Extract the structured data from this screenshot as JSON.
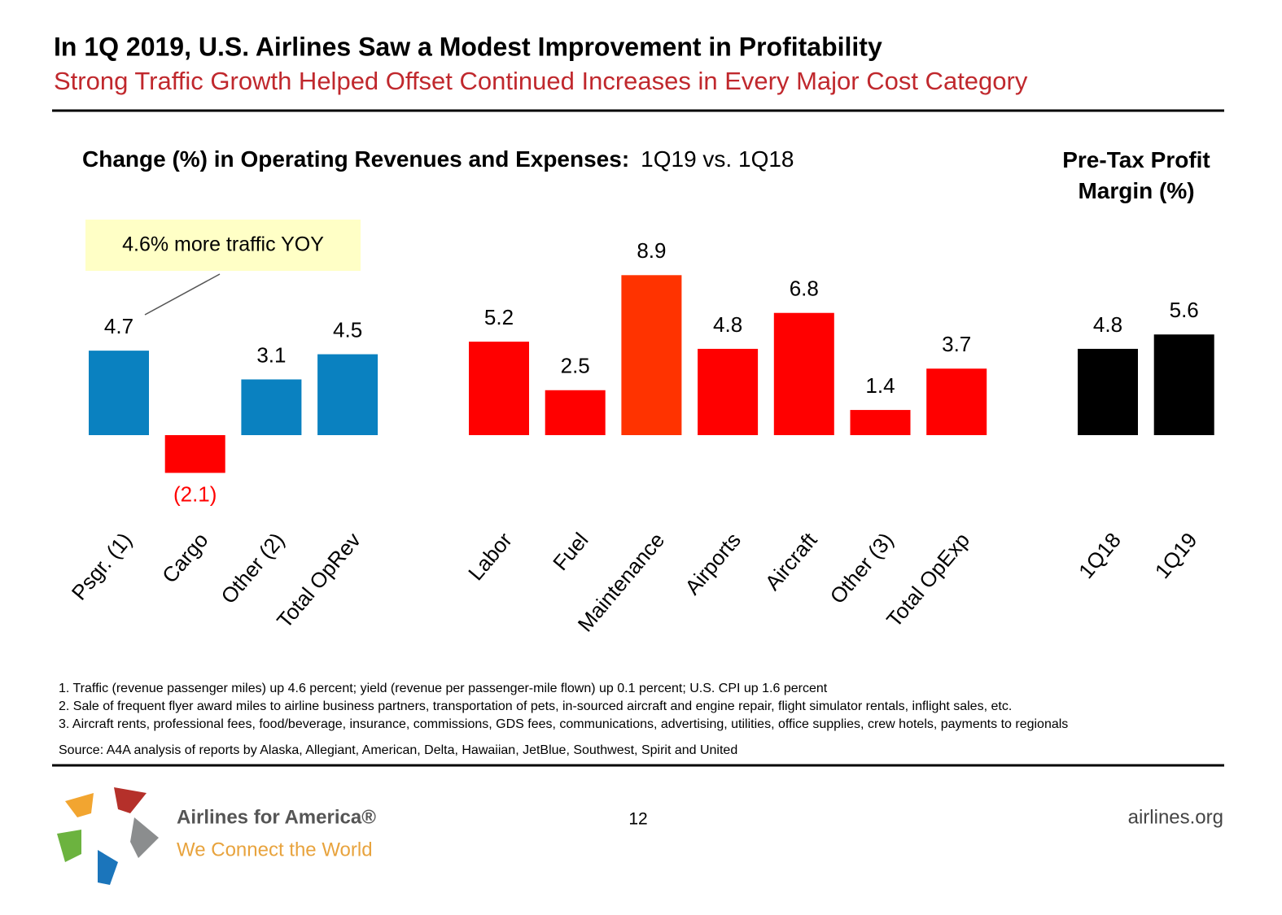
{
  "title": "In 1Q 2019, U.S. Airlines Saw a Modest Improvement in Profitability",
  "subtitle": "Strong Traffic Growth Helped Offset Continued Increases in Every Major Cost Category",
  "chart_data": [
    {
      "type": "bar",
      "title": "Change (%) in Operating Revenues and Expenses:",
      "subtitle": "1Q19 vs. 1Q18",
      "categories": [
        "Psgr. (1)",
        "Cargo",
        "Other (2)",
        "Total OpRev"
      ],
      "values": [
        4.7,
        -2.1,
        3.1,
        4.5
      ],
      "value_labels": [
        "4.7",
        "(2.1)",
        "3.1",
        "4.5"
      ],
      "colors": [
        "#0a81c0",
        "#ff0000",
        "#0a81c0",
        "#0a81c0"
      ],
      "annotation": "4.6% more traffic YOY"
    },
    {
      "type": "bar",
      "categories": [
        "Labor",
        "Fuel",
        "Maintenance",
        "Airports",
        "Aircraft",
        "Other (3)",
        "Total OpExp"
      ],
      "values": [
        5.2,
        2.5,
        8.9,
        4.8,
        6.8,
        1.4,
        3.7
      ],
      "colors": [
        "#ff0000",
        "#ff0000",
        "#ff3300",
        "#ff0000",
        "#ff0000",
        "#ff0000",
        "#ff0000"
      ]
    },
    {
      "type": "bar",
      "title": "Pre-Tax Profit Margin (%)",
      "categories": [
        "1Q18",
        "1Q19"
      ],
      "values": [
        4.8,
        5.6
      ],
      "colors": [
        "#000000",
        "#000000"
      ]
    }
  ],
  "footnotes": [
    "1. Traffic (revenue passenger miles) up 4.6 percent; yield (revenue per passenger-mile flown) up 0.1 percent; U.S. CPI up 1.6 percent",
    "2. Sale of frequent flyer award miles to airline business partners, transportation of pets, in-sourced aircraft and engine repair, flight simulator rentals, inflight sales, etc.",
    "3. Aircraft rents, professional fees, food/beverage, insurance, commissions, GDS fees, communications, advertising, utilities, office supplies, crew hotels, payments to regionals"
  ],
  "source": "Source: A4A analysis of reports by Alaska, Allegiant, American, Delta, Hawaiian, JetBlue, Southwest, Spirit and United",
  "footer": {
    "org": "Airlines for America®",
    "tagline": "We Connect the World",
    "page": "12",
    "url": "airlines.org"
  }
}
